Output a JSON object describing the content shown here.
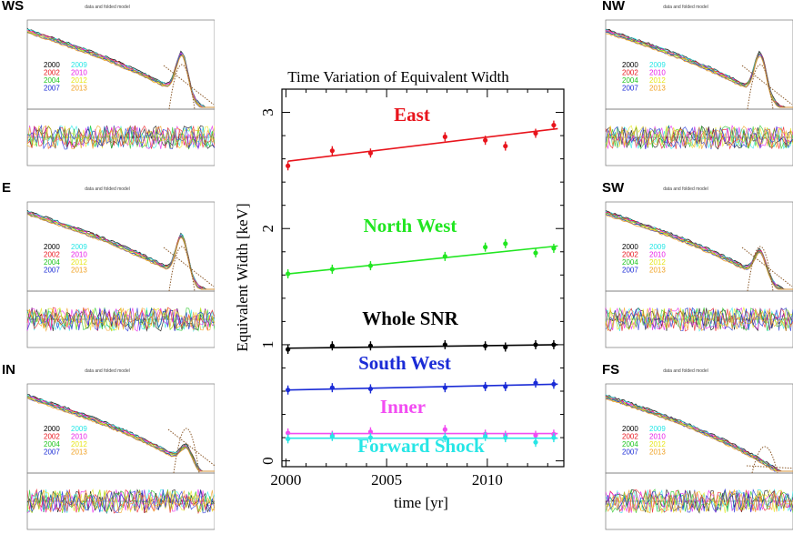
{
  "main_chart": {
    "title": "Time Variation of Equivalent Width",
    "xlabel": "time [yr]",
    "ylabel": "Equivalent Width [keV]"
  },
  "chart_data": [
    {
      "type": "scatter",
      "title": "Time Variation of Equivalent Width",
      "xlabel": "time [yr]",
      "ylabel": "Equivalent Width [keV]",
      "xlim": [
        1999.8,
        2013.8
      ],
      "ylim": [
        -0.05,
        3.2
      ],
      "x_ticks": [
        2000,
        2005,
        2010
      ],
      "y_ticks": [
        0,
        1,
        2,
        3
      ],
      "grid": false,
      "fit_lines": true,
      "series": [
        {
          "name": "East",
          "color": "#e8141c",
          "x": [
            2000.1,
            2002.3,
            2004.2,
            2007.9,
            2009.9,
            2010.9,
            2012.4,
            2013.3
          ],
          "y": [
            2.54,
            2.67,
            2.65,
            2.79,
            2.76,
            2.71,
            2.82,
            2.89
          ],
          "fit": [
            2.58,
            2.86
          ]
        },
        {
          "name": "North West",
          "color": "#21e621",
          "x": [
            2000.1,
            2002.3,
            2004.2,
            2007.9,
            2009.9,
            2010.9,
            2012.4,
            2013.3
          ],
          "y": [
            1.61,
            1.65,
            1.68,
            1.76,
            1.84,
            1.87,
            1.79,
            1.83
          ],
          "fit": [
            1.61,
            1.85
          ]
        },
        {
          "name": "Whole SNR",
          "color": "#000000",
          "x": [
            2000.1,
            2002.3,
            2004.2,
            2007.9,
            2009.9,
            2010.9,
            2012.4,
            2013.3
          ],
          "y": [
            0.96,
            0.99,
            0.99,
            1.0,
            0.99,
            0.98,
            1.0,
            1.0
          ],
          "fit": [
            0.97,
            1.0
          ]
        },
        {
          "name": "South West",
          "color": "#1a2bd6",
          "x": [
            2000.1,
            2002.3,
            2004.2,
            2007.9,
            2009.9,
            2010.9,
            2012.4,
            2013.3
          ],
          "y": [
            0.61,
            0.63,
            0.62,
            0.63,
            0.64,
            0.64,
            0.67,
            0.66
          ],
          "fit": [
            0.61,
            0.66
          ]
        },
        {
          "name": "Inner",
          "color": "#f24cf2",
          "x": [
            2000.1,
            2002.3,
            2004.2,
            2007.9,
            2009.9,
            2010.9,
            2012.4,
            2013.3
          ],
          "y": [
            0.24,
            0.22,
            0.25,
            0.27,
            0.23,
            0.22,
            0.22,
            0.23
          ],
          "fit": [
            0.235,
            0.235
          ]
        },
        {
          "name": "Forward Shock",
          "color": "#27e6e6",
          "x": [
            2000.1,
            2002.3,
            2004.2,
            2007.9,
            2009.9,
            2010.9,
            2012.4,
            2013.3
          ],
          "y": [
            0.19,
            0.21,
            0.2,
            0.2,
            0.21,
            0.2,
            0.16,
            0.2
          ],
          "fit": [
            0.195,
            0.195
          ]
        }
      ]
    }
  ],
  "panels": [
    {
      "id": "WS",
      "label": "WS",
      "subtitle": "data and folded model",
      "side": "left",
      "row": 0
    },
    {
      "id": "E",
      "label": "E",
      "subtitle": "data and folded model",
      "side": "left",
      "row": 1
    },
    {
      "id": "IN",
      "label": "IN",
      "subtitle": "data and folded model",
      "side": "left",
      "row": 2
    },
    {
      "id": "NW",
      "label": "NW",
      "subtitle": "data and folded model",
      "side": "right",
      "row": 0
    },
    {
      "id": "SW",
      "label": "SW",
      "subtitle": "data and folded model",
      "side": "right",
      "row": 1
    },
    {
      "id": "FS",
      "label": "FS",
      "subtitle": "data and folded model",
      "side": "right",
      "row": 2
    }
  ],
  "panel_legend": [
    {
      "year": "2000",
      "color": "#000000"
    },
    {
      "year": "2009",
      "color": "#27e6e6"
    },
    {
      "year": "2002",
      "color": "#e8141c"
    },
    {
      "year": "2010",
      "color": "#e61ae6"
    },
    {
      "year": "2004",
      "color": "#21c621"
    },
    {
      "year": "2012",
      "color": "#e6e61a"
    },
    {
      "year": "2007",
      "color": "#1a2bd6"
    },
    {
      "year": "2013",
      "color": "#f0a020"
    }
  ]
}
